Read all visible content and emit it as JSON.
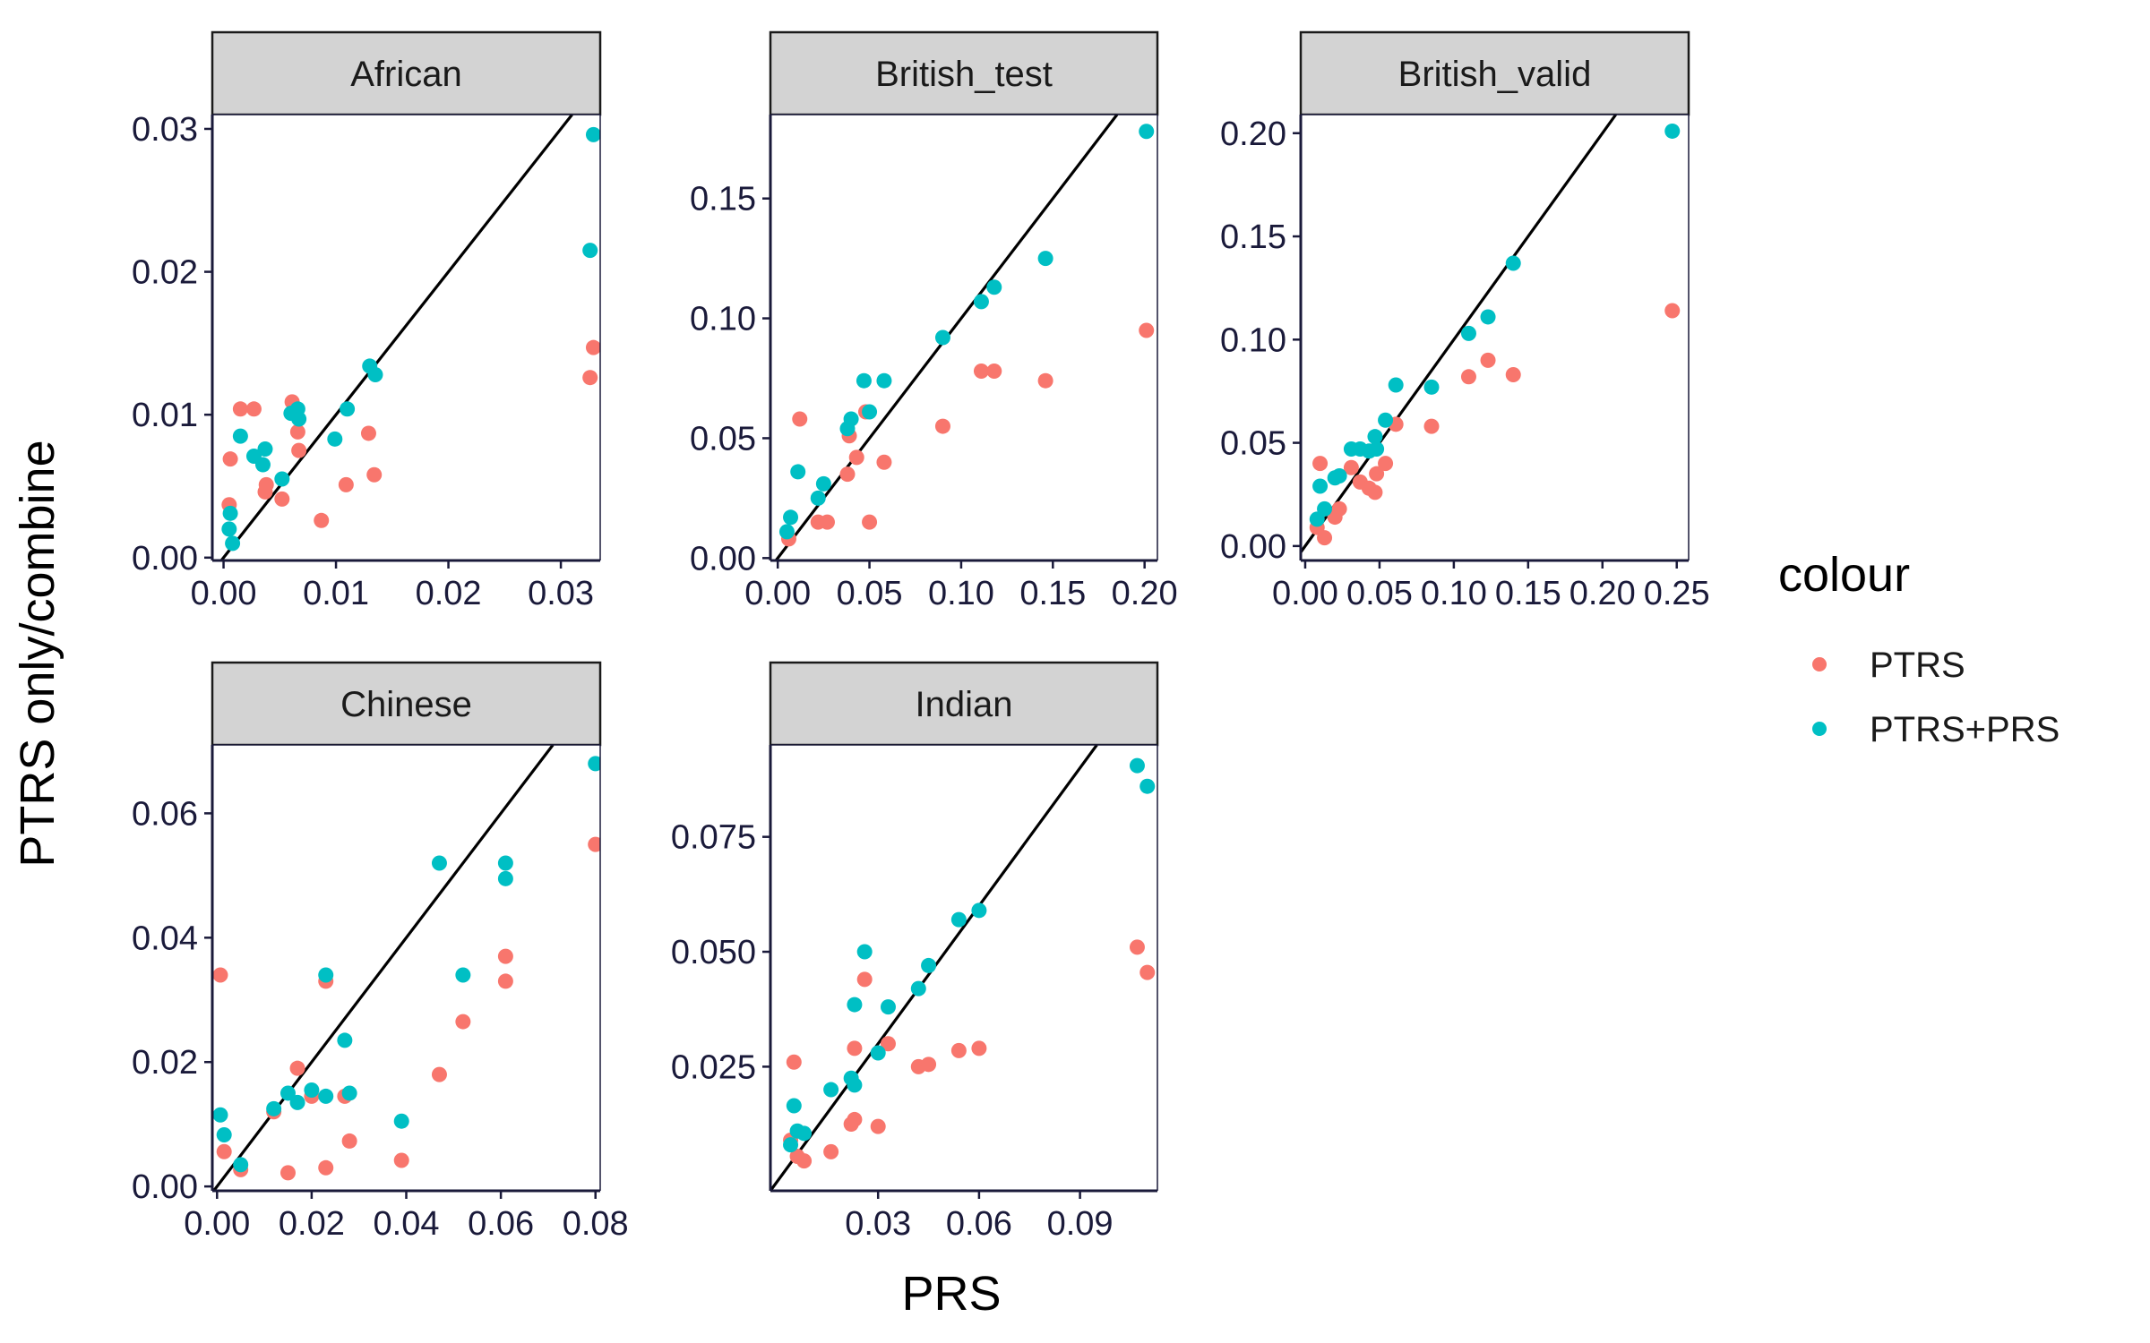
{
  "chart_data": {
    "type": "scatter",
    "xlabel": "PRS",
    "ylabel": "PTRS only/combine",
    "legend": {
      "title": "colour",
      "position": "right",
      "entries": [
        {
          "label": "PTRS",
          "color": "#F8766D"
        },
        {
          "label": "PTRS+PRS",
          "color": "#00BFC4"
        }
      ]
    },
    "reference_line": "y = x",
    "grid": false,
    "panels": [
      {
        "name": "African",
        "xlim": [
          -0.001,
          0.0335
        ],
        "ylim": [
          -0.0002,
          0.031
        ],
        "xticks": [
          {
            "v": 0.0,
            "label": "0.00"
          },
          {
            "v": 0.01,
            "label": "0.01"
          },
          {
            "v": 0.02,
            "label": "0.02"
          },
          {
            "v": 0.03,
            "label": "0.03"
          }
        ],
        "yticks": [
          {
            "v": 0.0,
            "label": "0.00"
          },
          {
            "v": 0.01,
            "label": "0.01"
          },
          {
            "v": 0.02,
            "label": "0.02"
          },
          {
            "v": 0.03,
            "label": "0.03"
          }
        ],
        "series": [
          {
            "name": "PTRS",
            "points": [
              [
                0.0005,
                0.0037
              ],
              [
                0.0006,
                0.0069
              ],
              [
                0.0015,
                0.0104
              ],
              [
                0.0027,
                0.0104
              ],
              [
                0.0037,
                0.0046
              ],
              [
                0.0038,
                0.0051
              ],
              [
                0.0052,
                0.0041
              ],
              [
                0.0061,
                0.0109
              ],
              [
                0.0066,
                0.0088
              ],
              [
                0.0067,
                0.0075
              ],
              [
                0.0087,
                0.0026
              ],
              [
                0.0109,
                0.0051
              ],
              [
                0.0129,
                0.0087
              ],
              [
                0.0134,
                0.0058
              ],
              [
                0.0326,
                0.0126
              ],
              [
                0.0329,
                0.0147
              ]
            ]
          },
          {
            "name": "PTRS+PRS",
            "points": [
              [
                0.0005,
                0.002
              ],
              [
                0.0006,
                0.0031
              ],
              [
                0.0008,
                0.001
              ],
              [
                0.0015,
                0.0085
              ],
              [
                0.0027,
                0.0071
              ],
              [
                0.0035,
                0.0065
              ],
              [
                0.0037,
                0.0076
              ],
              [
                0.0052,
                0.0055
              ],
              [
                0.006,
                0.0101
              ],
              [
                0.0066,
                0.0104
              ],
              [
                0.0067,
                0.0097
              ],
              [
                0.0099,
                0.0083
              ],
              [
                0.011,
                0.0104
              ],
              [
                0.013,
                0.0134
              ],
              [
                0.0135,
                0.0128
              ],
              [
                0.0326,
                0.0215
              ],
              [
                0.0329,
                0.0296
              ]
            ]
          }
        ]
      },
      {
        "name": "British_test",
        "xlim": [
          -0.004,
          0.207
        ],
        "ylim": [
          -0.001,
          0.185
        ],
        "xticks": [
          {
            "v": 0.0,
            "label": "0.00"
          },
          {
            "v": 0.05,
            "label": "0.05"
          },
          {
            "v": 0.1,
            "label": "0.10"
          },
          {
            "v": 0.15,
            "label": "0.15"
          },
          {
            "v": 0.2,
            "label": "0.20"
          }
        ],
        "yticks": [
          {
            "v": 0.0,
            "label": "0.00"
          },
          {
            "v": 0.05,
            "label": "0.05"
          },
          {
            "v": 0.1,
            "label": "0.10"
          },
          {
            "v": 0.15,
            "label": "0.15"
          }
        ],
        "series": [
          {
            "name": "PTRS",
            "points": [
              [
                0.006,
                0.008
              ],
              [
                0.012,
                0.058
              ],
              [
                0.022,
                0.015
              ],
              [
                0.027,
                0.015
              ],
              [
                0.038,
                0.035
              ],
              [
                0.039,
                0.051
              ],
              [
                0.043,
                0.042
              ],
              [
                0.048,
                0.061
              ],
              [
                0.05,
                0.015
              ],
              [
                0.058,
                0.04
              ],
              [
                0.09,
                0.055
              ],
              [
                0.111,
                0.078
              ],
              [
                0.118,
                0.078
              ],
              [
                0.146,
                0.074
              ],
              [
                0.201,
                0.095
              ]
            ]
          },
          {
            "name": "PTRS+PRS",
            "points": [
              [
                0.005,
                0.011
              ],
              [
                0.007,
                0.017
              ],
              [
                0.011,
                0.036
              ],
              [
                0.022,
                0.025
              ],
              [
                0.025,
                0.031
              ],
              [
                0.038,
                0.054
              ],
              [
                0.04,
                0.058
              ],
              [
                0.047,
                0.074
              ],
              [
                0.05,
                0.061
              ],
              [
                0.058,
                0.074
              ],
              [
                0.09,
                0.092
              ],
              [
                0.111,
                0.107
              ],
              [
                0.118,
                0.113
              ],
              [
                0.146,
                0.125
              ],
              [
                0.201,
                0.178
              ]
            ]
          }
        ]
      },
      {
        "name": "British_valid",
        "xlim": [
          -0.003,
          0.258
        ],
        "ylim": [
          -0.007,
          0.209
        ],
        "xticks": [
          {
            "v": 0.0,
            "label": "0.00"
          },
          {
            "v": 0.05,
            "label": "0.05"
          },
          {
            "v": 0.1,
            "label": "0.10"
          },
          {
            "v": 0.15,
            "label": "0.15"
          },
          {
            "v": 0.2,
            "label": "0.20"
          },
          {
            "v": 0.25,
            "label": "0.25"
          }
        ],
        "yticks": [
          {
            "v": 0.0,
            "label": "0.00"
          },
          {
            "v": 0.05,
            "label": "0.05"
          },
          {
            "v": 0.1,
            "label": "0.10"
          },
          {
            "v": 0.15,
            "label": "0.15"
          },
          {
            "v": 0.2,
            "label": "0.20"
          }
        ],
        "series": [
          {
            "name": "PTRS",
            "points": [
              [
                0.008,
                0.009
              ],
              [
                0.01,
                0.04
              ],
              [
                0.013,
                0.004
              ],
              [
                0.02,
                0.014
              ],
              [
                0.023,
                0.018
              ],
              [
                0.031,
                0.038
              ],
              [
                0.037,
                0.031
              ],
              [
                0.043,
                0.028
              ],
              [
                0.047,
                0.026
              ],
              [
                0.048,
                0.035
              ],
              [
                0.054,
                0.04
              ],
              [
                0.061,
                0.059
              ],
              [
                0.085,
                0.058
              ],
              [
                0.11,
                0.082
              ],
              [
                0.123,
                0.09
              ],
              [
                0.14,
                0.083
              ],
              [
                0.247,
                0.114
              ]
            ]
          },
          {
            "name": "PTRS+PRS",
            "points": [
              [
                0.008,
                0.013
              ],
              [
                0.01,
                0.029
              ],
              [
                0.013,
                0.018
              ],
              [
                0.02,
                0.033
              ],
              [
                0.023,
                0.034
              ],
              [
                0.031,
                0.047
              ],
              [
                0.037,
                0.047
              ],
              [
                0.043,
                0.046
              ],
              [
                0.047,
                0.053
              ],
              [
                0.048,
                0.047
              ],
              [
                0.054,
                0.061
              ],
              [
                0.061,
                0.078
              ],
              [
                0.085,
                0.077
              ],
              [
                0.11,
                0.103
              ],
              [
                0.123,
                0.111
              ],
              [
                0.14,
                0.137
              ],
              [
                0.247,
                0.201
              ]
            ]
          }
        ]
      },
      {
        "name": "Chinese",
        "xlim": [
          -0.001,
          0.081
        ],
        "ylim": [
          -0.0007,
          0.071
        ],
        "xticks": [
          {
            "v": 0.0,
            "label": "0.00"
          },
          {
            "v": 0.02,
            "label": "0.02"
          },
          {
            "v": 0.04,
            "label": "0.04"
          },
          {
            "v": 0.06,
            "label": "0.06"
          },
          {
            "v": 0.08,
            "label": "0.08"
          }
        ],
        "yticks": [
          {
            "v": 0.0,
            "label": "0.00"
          },
          {
            "v": 0.02,
            "label": "0.02"
          },
          {
            "v": 0.04,
            "label": "0.04"
          },
          {
            "v": 0.06,
            "label": "0.06"
          }
        ],
        "series": [
          {
            "name": "PTRS",
            "points": [
              [
                0.0007,
                0.034
              ],
              [
                0.0015,
                0.0056
              ],
              [
                0.005,
                0.0027
              ],
              [
                0.012,
                0.012
              ],
              [
                0.015,
                0.0022
              ],
              [
                0.017,
                0.019
              ],
              [
                0.02,
                0.0145
              ],
              [
                0.023,
                0.033
              ],
              [
                0.023,
                0.003
              ],
              [
                0.027,
                0.0145
              ],
              [
                0.028,
                0.0073
              ],
              [
                0.039,
                0.0042
              ],
              [
                0.047,
                0.018
              ],
              [
                0.052,
                0.0265
              ],
              [
                0.061,
                0.037
              ],
              [
                0.061,
                0.033
              ],
              [
                0.08,
                0.055
              ]
            ]
          },
          {
            "name": "PTRS+PRS",
            "points": [
              [
                0.0007,
                0.0115
              ],
              [
                0.0015,
                0.0083
              ],
              [
                0.005,
                0.0035
              ],
              [
                0.012,
                0.0125
              ],
              [
                0.015,
                0.015
              ],
              [
                0.017,
                0.0135
              ],
              [
                0.02,
                0.0155
              ],
              [
                0.023,
                0.034
              ],
              [
                0.023,
                0.0145
              ],
              [
                0.027,
                0.0235
              ],
              [
                0.028,
                0.015
              ],
              [
                0.039,
                0.0105
              ],
              [
                0.047,
                0.052
              ],
              [
                0.052,
                0.034
              ],
              [
                0.061,
                0.0495
              ],
              [
                0.061,
                0.052
              ],
              [
                0.08,
                0.068
              ]
            ]
          }
        ]
      },
      {
        "name": "Indian",
        "xlim": [
          -0.002,
          0.113
        ],
        "ylim": [
          -0.002,
          0.095
        ],
        "xticks": [
          {
            "v": 0.03,
            "label": "0.03"
          },
          {
            "v": 0.06,
            "label": "0.06"
          },
          {
            "v": 0.09,
            "label": "0.09"
          }
        ],
        "yticks": [
          {
            "v": 0.025,
            "label": "0.025"
          },
          {
            "v": 0.05,
            "label": "0.050"
          },
          {
            "v": 0.075,
            "label": "0.075"
          }
        ],
        "series": [
          {
            "name": "PTRS",
            "points": [
              [
                0.004,
                0.009
              ],
              [
                0.005,
                0.026
              ],
              [
                0.006,
                0.0055
              ],
              [
                0.008,
                0.0045
              ],
              [
                0.016,
                0.0065
              ],
              [
                0.022,
                0.0125
              ],
              [
                0.023,
                0.0135
              ],
              [
                0.023,
                0.029
              ],
              [
                0.026,
                0.044
              ],
              [
                0.03,
                0.012
              ],
              [
                0.033,
                0.03
              ],
              [
                0.042,
                0.025
              ],
              [
                0.045,
                0.0255
              ],
              [
                0.054,
                0.0285
              ],
              [
                0.06,
                0.029
              ],
              [
                0.107,
                0.051
              ],
              [
                0.11,
                0.0455
              ]
            ]
          },
          {
            "name": "PTRS+PRS",
            "points": [
              [
                0.004,
                0.008
              ],
              [
                0.005,
                0.0165
              ],
              [
                0.006,
                0.011
              ],
              [
                0.008,
                0.0105
              ],
              [
                0.016,
                0.02
              ],
              [
                0.022,
                0.0225
              ],
              [
                0.023,
                0.021
              ],
              [
                0.023,
                0.0385
              ],
              [
                0.026,
                0.05
              ],
              [
                0.03,
                0.028
              ],
              [
                0.033,
                0.038
              ],
              [
                0.042,
                0.042
              ],
              [
                0.045,
                0.047
              ],
              [
                0.054,
                0.057
              ],
              [
                0.06,
                0.059
              ],
              [
                0.107,
                0.0905
              ],
              [
                0.11,
                0.086
              ]
            ]
          }
        ]
      }
    ]
  }
}
